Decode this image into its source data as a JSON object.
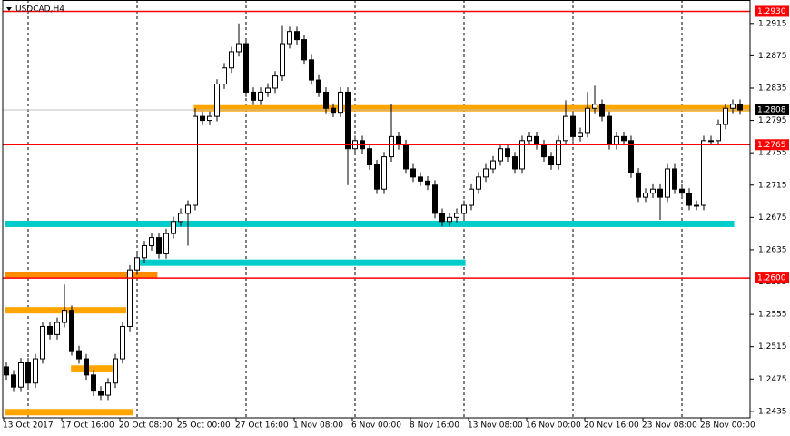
{
  "chart_data": {
    "type": "candlestick",
    "title": "USDCAD,H4",
    "categories": [
      "13 Oct 2017",
      null,
      null,
      null,
      null,
      null,
      null,
      null,
      "17 Oct 16:00",
      null,
      null,
      null,
      null,
      null,
      null,
      null,
      "20 Oct 08:00",
      null,
      null,
      null,
      null,
      null,
      null,
      null,
      "25 Oct 00:00",
      null,
      null,
      null,
      null,
      null,
      null,
      null,
      "27 Oct 16:00",
      null,
      null,
      null,
      null,
      null,
      null,
      null,
      "1 Nov 08:00",
      null,
      null,
      null,
      null,
      null,
      null,
      null,
      "6 Nov 00:00",
      null,
      null,
      null,
      null,
      null,
      null,
      null,
      "8 Nov 16:00",
      null,
      null,
      null,
      null,
      null,
      null,
      null,
      "13 Nov 08:00",
      null,
      null,
      null,
      null,
      null,
      null,
      null,
      "16 Nov 00:00",
      null,
      null,
      null,
      null,
      null,
      null,
      null,
      "20 Nov 16:00",
      null,
      null,
      null,
      null,
      null,
      null,
      null,
      "23 Nov 08:00",
      null,
      null,
      null,
      null,
      null,
      null,
      null,
      "28 Nov 00:00",
      null,
      null,
      null,
      null,
      null
    ],
    "open": [
      1.249,
      1.248,
      1.2465,
      1.2495,
      1.247,
      1.25,
      1.254,
      1.253,
      1.2545,
      1.256,
      1.251,
      1.25,
      1.248,
      1.246,
      1.2455,
      1.247,
      1.25,
      1.254,
      1.261,
      1.2625,
      1.264,
      1.265,
      1.263,
      1.2655,
      1.267,
      1.268,
      1.269,
      1.28,
      1.2795,
      1.28,
      1.284,
      1.286,
      1.288,
      1.289,
      1.283,
      1.282,
      1.283,
      1.2835,
      1.285,
      1.289,
      1.2905,
      1.2895,
      1.287,
      1.2845,
      1.283,
      1.281,
      1.2805,
      1.283,
      1.276,
      1.277,
      1.276,
      1.274,
      1.271,
      1.275,
      1.2775,
      1.2765,
      1.2735,
      1.2725,
      1.272,
      1.2715,
      1.268,
      1.267,
      1.2675,
      1.268,
      1.269,
      1.271,
      1.2725,
      1.2735,
      1.2745,
      1.276,
      1.275,
      1.2735,
      1.277,
      1.2775,
      1.2765,
      1.275,
      1.274,
      1.277,
      1.28,
      1.2775,
      1.278,
      1.281,
      1.2815,
      1.28,
      1.2765,
      1.2775,
      1.277,
      1.273,
      1.27,
      1.2705,
      1.271,
      1.27,
      1.2735,
      1.271,
      1.2705,
      1.269,
      1.269,
      1.277,
      1.277,
      1.279,
      1.281,
      1.2815
    ],
    "high": [
      1.2496,
      1.2486,
      1.2501,
      1.2501,
      1.2506,
      1.2546,
      1.2546,
      1.2551,
      1.2592,
      1.2566,
      1.2516,
      1.2506,
      1.2486,
      1.2466,
      1.2476,
      1.2506,
      1.2546,
      1.2616,
      1.2631,
      1.2646,
      1.2656,
      1.2656,
      1.2661,
      1.2676,
      1.2686,
      1.2696,
      1.281,
      1.2806,
      1.2806,
      1.2846,
      1.2866,
      1.2886,
      1.2915,
      1.2896,
      1.2836,
      1.2836,
      1.2841,
      1.2856,
      1.2912,
      1.2911,
      1.2911,
      1.2901,
      1.2876,
      1.2851,
      1.2836,
      1.2816,
      1.2836,
      1.2836,
      1.2776,
      1.2776,
      1.2766,
      1.2746,
      1.2756,
      1.2815,
      1.2781,
      1.2771,
      1.2741,
      1.2731,
      1.2726,
      1.2721,
      1.2686,
      1.2681,
      1.2686,
      1.2696,
      1.2716,
      1.2731,
      1.2741,
      1.2751,
      1.2766,
      1.2766,
      1.2756,
      1.2776,
      1.2781,
      1.2781,
      1.2771,
      1.2756,
      1.2776,
      1.282,
      1.2806,
      1.2786,
      1.283,
      1.2838,
      1.2821,
      1.2806,
      1.2781,
      1.2781,
      1.2776,
      1.2736,
      1.2711,
      1.2716,
      1.2716,
      1.2741,
      1.2741,
      1.2716,
      1.2711,
      1.2696,
      1.2776,
      1.2776,
      1.2796,
      1.2816,
      1.2821,
      1.2821
    ],
    "low": [
      1.2474,
      1.2459,
      1.2459,
      1.2464,
      1.2464,
      1.2494,
      1.2524,
      1.2524,
      1.2539,
      1.2504,
      1.2494,
      1.2474,
      1.2454,
      1.2449,
      1.2449,
      1.2464,
      1.2494,
      1.2534,
      1.2604,
      1.2619,
      1.2634,
      1.2624,
      1.2624,
      1.2649,
      1.2664,
      1.264,
      1.2684,
      1.2789,
      1.2789,
      1.2794,
      1.2834,
      1.2854,
      1.2874,
      1.2824,
      1.2814,
      1.2814,
      1.2824,
      1.2829,
      1.2844,
      1.2884,
      1.2889,
      1.2864,
      1.2839,
      1.2824,
      1.2804,
      1.2799,
      1.2799,
      1.2715,
      1.2754,
      1.2754,
      1.2734,
      1.2704,
      1.2704,
      1.2744,
      1.2759,
      1.2729,
      1.2719,
      1.2714,
      1.2709,
      1.2674,
      1.2664,
      1.2664,
      1.2669,
      1.2674,
      1.2684,
      1.2704,
      1.2719,
      1.2729,
      1.2739,
      1.2744,
      1.2729,
      1.2729,
      1.2764,
      1.2759,
      1.2744,
      1.2734,
      1.2734,
      1.2764,
      1.2769,
      1.2769,
      1.2774,
      1.2804,
      1.2794,
      1.2759,
      1.2759,
      1.2764,
      1.2724,
      1.2694,
      1.2694,
      1.2699,
      1.2672,
      1.2694,
      1.2704,
      1.2699,
      1.2684,
      1.2684,
      1.2684,
      1.2764,
      1.2764,
      1.2784,
      1.2804,
      1.2802
    ],
    "close": [
      1.248,
      1.2465,
      1.2495,
      1.247,
      1.25,
      1.254,
      1.253,
      1.2545,
      1.256,
      1.251,
      1.25,
      1.248,
      1.246,
      1.2455,
      1.247,
      1.25,
      1.254,
      1.261,
      1.2625,
      1.264,
      1.265,
      1.263,
      1.2655,
      1.267,
      1.268,
      1.269,
      1.28,
      1.2795,
      1.28,
      1.284,
      1.286,
      1.288,
      1.289,
      1.283,
      1.282,
      1.283,
      1.2835,
      1.285,
      1.289,
      1.2905,
      1.2895,
      1.287,
      1.2845,
      1.283,
      1.281,
      1.2805,
      1.283,
      1.276,
      1.277,
      1.276,
      1.274,
      1.271,
      1.275,
      1.2775,
      1.2765,
      1.2735,
      1.2725,
      1.272,
      1.2715,
      1.268,
      1.267,
      1.2675,
      1.268,
      1.269,
      1.271,
      1.2725,
      1.2735,
      1.2745,
      1.276,
      1.275,
      1.2735,
      1.277,
      1.2775,
      1.2765,
      1.275,
      1.274,
      1.277,
      1.28,
      1.2775,
      1.278,
      1.281,
      1.2815,
      1.28,
      1.2765,
      1.2775,
      1.277,
      1.273,
      1.27,
      1.2705,
      1.271,
      1.27,
      1.2735,
      1.271,
      1.2705,
      1.269,
      1.269,
      1.277,
      1.277,
      1.279,
      1.281,
      1.2815,
      1.2808
    ],
    "ylim": [
      1.2427,
      1.2944
    ],
    "yticks": [
      1.2915,
      1.2875,
      1.2835,
      1.2795,
      1.2755,
      1.2715,
      1.2675,
      1.2635,
      1.2595,
      1.2555,
      1.2515,
      1.2475,
      1.2435
    ],
    "xgrid": [
      3,
      18,
      33,
      48,
      63,
      78,
      93
    ],
    "levels": [
      {
        "value": 1.293,
        "label": "1.2930"
      },
      {
        "value": 1.2765,
        "label": "1.2765"
      },
      {
        "value": 1.26,
        "label": "1.2600"
      }
    ],
    "level_color": "#ff0000",
    "current_price": {
      "value": 1.2808,
      "label": "1.2808"
    },
    "zones": [
      {
        "price": 1.281,
        "from": 25.8,
        "to": 103,
        "color": "#ffa500"
      },
      {
        "price": 1.2667,
        "from": -0.2,
        "to": 100.2,
        "color": "#00cccc"
      },
      {
        "price": 1.2619,
        "from": 18.2,
        "to": 63.2,
        "color": "#00cccc"
      },
      {
        "price": 1.2604,
        "from": -0.2,
        "to": 20.8,
        "color": "#ff8c00"
      },
      {
        "price": 1.256,
        "from": -0.2,
        "to": 16.5,
        "color": "#ffa500"
      },
      {
        "price": 1.2488,
        "from": 8.9,
        "to": 14.6,
        "color": "#ffa500"
      },
      {
        "price": 1.2434,
        "from": -0.2,
        "to": 17.5,
        "color": "#ffa500"
      }
    ]
  }
}
